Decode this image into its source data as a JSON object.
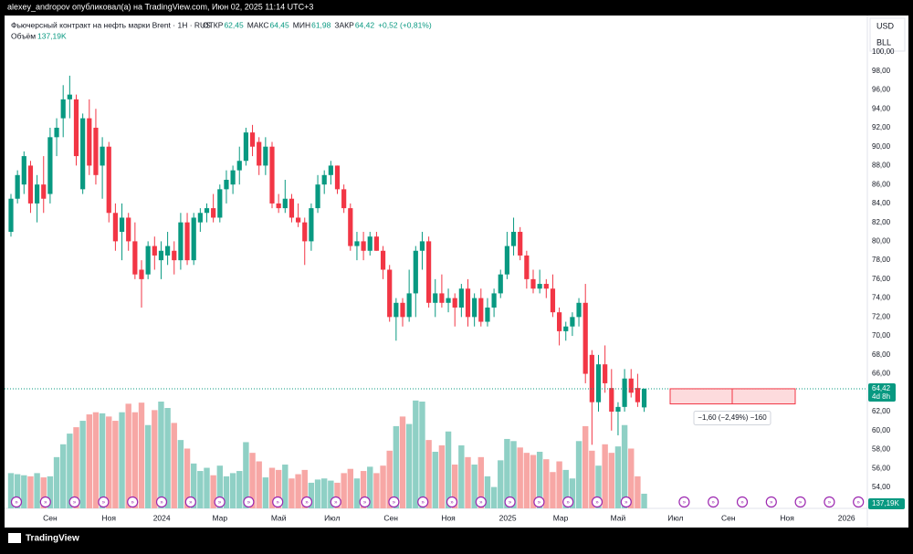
{
  "header": {
    "publisher": "alexey_andropov опубликовал(а) на TradingView.com, Июн 02, 2025 11:14 UTC+3",
    "brand": "TradingView"
  },
  "chart_data": {
    "type": "candlestick",
    "title": "Фьючерсный контракт на нефть марки Brent · 1Н · RUS",
    "ohlc_labels": [
      {
        "name": "ОТКР",
        "label": "62,45"
      },
      {
        "name": "МАКС",
        "label": "64,45"
      },
      {
        "name": "МИН",
        "label": "61,98"
      },
      {
        "name": "ЗАКР",
        "label": "64,42"
      }
    ],
    "change_label": "+0,52 (+0,81%)",
    "volume_name": "Объём",
    "volume_label": "137,19K",
    "currency": "USD",
    "unit": "BLL",
    "up_color": "#089981",
    "down_color": "#f23645",
    "up_volume_color": "#8fd0c5",
    "down_volume_color": "#f7a7a5",
    "grid": false,
    "categories": [
      null,
      null,
      null,
      null,
      null,
      null,
      null,
      null,
      null,
      null,
      null,
      null,
      null,
      null,
      null,
      null,
      null,
      null,
      null,
      null,
      null,
      null,
      null,
      null,
      null,
      null,
      null,
      null,
      null,
      null,
      null,
      null,
      null,
      null,
      null,
      null,
      null,
      null,
      null,
      null,
      null,
      null,
      null,
      null,
      null,
      null,
      null,
      null,
      null,
      null,
      null,
      null,
      null,
      null,
      null,
      null,
      null,
      null,
      null,
      null,
      null,
      null,
      null,
      null,
      null,
      null,
      null,
      null,
      null,
      null,
      null,
      null,
      null,
      null,
      null,
      null,
      null,
      null,
      null,
      null,
      null,
      null,
      null,
      null,
      null,
      null,
      null,
      null,
      null,
      null,
      null,
      null,
      null,
      null,
      null,
      null,
      null,
      null
    ],
    "open": [
      81,
      84.5,
      86,
      88,
      84,
      86,
      85,
      91,
      93,
      95,
      95,
      85.5,
      93,
      92,
      88,
      90,
      83,
      81,
      82.5,
      80,
      77,
      76.5,
      79.5,
      78,
      78.5,
      79,
      78,
      82,
      78,
      82,
      83,
      83.5,
      82.5,
      85.5,
      86,
      87.5,
      88.5,
      91.5,
      90.5,
      88,
      90,
      84,
      83.5,
      84.5,
      82.5,
      82,
      80,
      83.5,
      86,
      87,
      88,
      85.5,
      83.5,
      79.5,
      80,
      79,
      80.5,
      79,
      77,
      72,
      73.5,
      72,
      74.5,
      79,
      80,
      73.5,
      74.5,
      73.5,
      74,
      73,
      75,
      72,
      74,
      71.5,
      73,
      74.5,
      76.5,
      79.5,
      81,
      78.5,
      76,
      75,
      75.5,
      75,
      72.5,
      70.5,
      71,
      72,
      73.5,
      68,
      63,
      67,
      64.5,
      62,
      62.5,
      65.5,
      64.5,
      62.45
    ],
    "high": [
      85,
      87.5,
      89.5,
      88.5,
      87,
      89,
      92,
      93,
      96.5,
      97.5,
      95.5,
      93.5,
      95,
      94,
      91,
      90.5,
      84,
      84,
      83,
      82,
      78,
      80,
      80.5,
      80,
      81,
      80,
      83,
      83,
      83,
      83.5,
      84,
      85,
      86,
      87.5,
      88,
      90,
      92,
      92.3,
      91,
      91,
      90.5,
      85,
      86.5,
      85,
      84,
      82.5,
      84,
      87,
      87.5,
      88.5,
      88,
      86,
      84,
      81,
      81,
      81,
      81,
      79.5,
      77.5,
      74,
      74,
      77,
      79.5,
      81,
      80.5,
      76,
      76.5,
      75,
      74.5,
      75.5,
      76,
      74.5,
      75,
      74,
      75,
      77,
      81,
      82.5,
      81.5,
      79,
      77,
      77,
      76,
      76.5,
      73,
      71.5,
      72.5,
      74,
      75.5,
      68.5,
      68,
      69,
      66.5,
      63,
      66.5,
      66.5,
      66,
      64.45
    ],
    "low": [
      80.5,
      84,
      85,
      83,
      82,
      83,
      84,
      89,
      91,
      93,
      88,
      85,
      87,
      86,
      84.5,
      82,
      79,
      78,
      79,
      76,
      73,
      76,
      77,
      76,
      77.5,
      76.5,
      77,
      77.5,
      77.5,
      81,
      82,
      82,
      82,
      84,
      85,
      86,
      88,
      89,
      87,
      87,
      83.5,
      83,
      83,
      82,
      81.5,
      77.5,
      79,
      83,
      85,
      86,
      85,
      83,
      79,
      78,
      78,
      78.5,
      79,
      76,
      71.5,
      69.5,
      71,
      71.5,
      72,
      77,
      73,
      72,
      73,
      72.5,
      71,
      72,
      71,
      71,
      71,
      71,
      72,
      74,
      76,
      78.5,
      78,
      75,
      74.5,
      74.5,
      74,
      72,
      69,
      69.5,
      70,
      71,
      65,
      58.5,
      62,
      64,
      60,
      59.5,
      62,
      63.5,
      62.5,
      61.98
    ],
    "close": [
      84.5,
      87,
      89,
      84,
      86,
      84.5,
      91,
      92,
      95,
      95.5,
      89,
      93,
      88,
      87,
      90,
      83,
      80,
      82.5,
      80,
      76.5,
      76,
      79.5,
      78.5,
      79,
      79.5,
      78,
      82,
      78,
      82.5,
      83,
      83.5,
      82.5,
      85.5,
      86.5,
      87.5,
      88.5,
      91.5,
      90,
      88,
      90,
      84,
      83.5,
      84.5,
      82.5,
      82,
      80,
      83.5,
      86,
      87,
      88,
      85.5,
      83.5,
      79.5,
      80,
      79,
      80.5,
      79,
      77,
      72,
      73.5,
      72,
      74.5,
      79,
      80,
      73.5,
      74.5,
      73.5,
      74,
      73,
      75,
      72,
      74,
      71.5,
      73,
      74.5,
      76.5,
      79.5,
      81,
      78.5,
      76,
      75,
      75.5,
      75,
      72.5,
      70.5,
      71,
      72,
      73.5,
      66,
      63,
      67,
      65,
      62,
      62.5,
      65.5,
      64,
      63,
      64.42
    ],
    "volume": [
      330,
      320,
      310,
      300,
      330,
      290,
      300,
      480,
      600,
      700,
      760,
      820,
      880,
      900,
      890,
      860,
      820,
      900,
      980,
      900,
      990,
      780,
      920,
      1000,
      940,
      800,
      640,
      560,
      420,
      350,
      380,
      310,
      400,
      300,
      330,
      350,
      620,
      520,
      440,
      290,
      380,
      360,
      410,
      280,
      320,
      360,
      240,
      270,
      280,
      260,
      240,
      330,
      370,
      280,
      350,
      390,
      330,
      400,
      540,
      770,
      860,
      790,
      1010,
      1000,
      640,
      530,
      590,
      720,
      410,
      590,
      480,
      410,
      480,
      300,
      200,
      450,
      650,
      630,
      570,
      520,
      500,
      530,
      460,
      340,
      440,
      360,
      280,
      630,
      770,
      540,
      400,
      600,
      520,
      580,
      780,
      560,
      300,
      137.19
    ],
    "ylim": [
      54,
      100
    ],
    "yticks": [
      {
        "value": 54,
        "label": "54,00"
      },
      {
        "value": 56,
        "label": "56,00"
      },
      {
        "value": 58,
        "label": "58,00"
      },
      {
        "value": 60,
        "label": "60,00"
      },
      {
        "value": 62,
        "label": "62,00"
      },
      {
        "value": 64,
        "label": "64,00"
      },
      {
        "value": 66,
        "label": "66,00"
      },
      {
        "value": 68,
        "label": "68,00"
      },
      {
        "value": 70,
        "label": "70,00"
      },
      {
        "value": 72,
        "label": "72,00"
      },
      {
        "value": 74,
        "label": "74,00"
      },
      {
        "value": 76,
        "label": "76,00"
      },
      {
        "value": 78,
        "label": "78,00"
      },
      {
        "value": 80,
        "label": "80,00"
      },
      {
        "value": 82,
        "label": "82,00"
      },
      {
        "value": 84,
        "label": "84,00"
      },
      {
        "value": 86,
        "label": "86,00"
      },
      {
        "value": 88,
        "label": "88,00"
      },
      {
        "value": 90,
        "label": "90,00"
      },
      {
        "value": 92,
        "label": "92,00"
      },
      {
        "value": 94,
        "label": "94,00"
      },
      {
        "value": 96,
        "label": "96,00"
      },
      {
        "value": 98,
        "label": "98,00"
      },
      {
        "value": 100,
        "label": "100,00"
      }
    ],
    "xticks": [
      {
        "value": 6,
        "label": "Сен"
      },
      {
        "value": 15,
        "label": "Ноя"
      },
      {
        "value": 23.1,
        "label": "2024"
      },
      {
        "value": 32,
        "label": "Мар"
      },
      {
        "value": 41,
        "label": "Май"
      },
      {
        "value": 49.2,
        "label": "Июл"
      },
      {
        "value": 58.2,
        "label": "Сен"
      },
      {
        "value": 67,
        "label": "Ноя"
      },
      {
        "value": 76.1,
        "label": "2025"
      },
      {
        "value": 84.2,
        "label": "Мар"
      },
      {
        "value": 93,
        "label": "Май"
      },
      {
        "value": 101.8,
        "label": "Июл"
      },
      {
        "value": 109.9,
        "label": "Сен"
      },
      {
        "value": 118.9,
        "label": "Ноя"
      },
      {
        "value": 128,
        "label": "2026"
      }
    ],
    "last": {
      "value": 64.42,
      "label": "64,42",
      "countdown": "4d 8h"
    },
    "measure": {
      "from": 64.42,
      "to": 62.82,
      "label": "−1,60 (−2,49%) −160"
    }
  }
}
